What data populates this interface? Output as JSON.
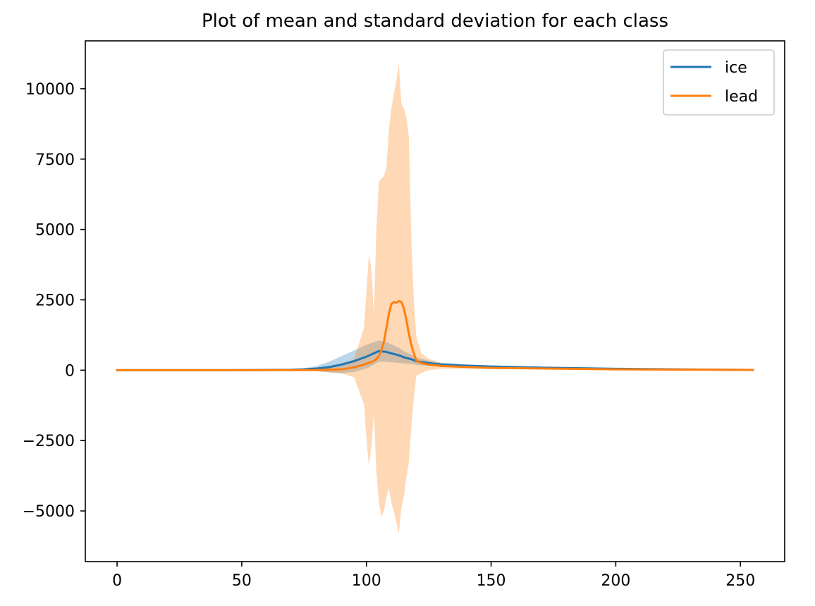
{
  "chart_data": {
    "type": "line",
    "title": "Plot of mean and standard deviation for each class",
    "xlabel": "",
    "ylabel": "",
    "xlim": [
      -12.75,
      267.75
    ],
    "ylim": [
      -6800,
      11700
    ],
    "xticks": [
      0,
      50,
      100,
      150,
      200,
      250
    ],
    "xtick_labels": [
      "0",
      "50",
      "100",
      "150",
      "200",
      "250"
    ],
    "yticks": [
      -5000,
      -2500,
      0,
      2500,
      5000,
      7500,
      10000
    ],
    "ytick_labels": [
      "−5000",
      "−2500",
      "0",
      "2500",
      "5000",
      "7500",
      "10000"
    ],
    "grid": false,
    "legend_position": "top-right",
    "series": [
      {
        "name": "ice",
        "color": "#1f77b4",
        "band_color": "#1f77b4",
        "band_opacity": 0.3,
        "x": [
          0,
          50,
          70,
          75,
          80,
          85,
          90,
          95,
          100,
          103,
          105,
          108,
          110,
          113,
          115,
          118,
          120,
          125,
          130,
          140,
          150,
          170,
          200,
          230,
          255
        ],
        "mean": [
          0,
          2,
          15,
          30,
          60,
          110,
          200,
          320,
          480,
          600,
          680,
          650,
          600,
          530,
          460,
          390,
          320,
          250,
          200,
          160,
          130,
          90,
          50,
          25,
          10
        ],
        "upper": [
          0,
          5,
          30,
          70,
          150,
          300,
          500,
          700,
          900,
          1000,
          1050,
          1000,
          920,
          800,
          680,
          550,
          450,
          340,
          270,
          210,
          170,
          120,
          70,
          35,
          15
        ],
        "lower": [
          0,
          -1,
          0,
          -10,
          -30,
          -80,
          -100,
          -60,
          60,
          200,
          300,
          300,
          280,
          260,
          240,
          220,
          190,
          160,
          130,
          110,
          90,
          60,
          30,
          15,
          5
        ]
      },
      {
        "name": "lead",
        "color": "#ff7f0e",
        "band_color": "#ff7f0e",
        "band_opacity": 0.3,
        "x": [
          0,
          50,
          80,
          90,
          95,
          99,
          100,
          101,
          102,
          103,
          104,
          105,
          106,
          107,
          108,
          109,
          110,
          111,
          112,
          113,
          114,
          115,
          116,
          117,
          118,
          119,
          120,
          122,
          125,
          130,
          150,
          200,
          255
        ],
        "mean": [
          0,
          0,
          5,
          30,
          100,
          200,
          230,
          260,
          290,
          330,
          400,
          500,
          700,
          1000,
          1500,
          2000,
          2350,
          2420,
          2400,
          2450,
          2430,
          2200,
          1800,
          1300,
          900,
          600,
          350,
          250,
          200,
          150,
          80,
          30,
          10
        ],
        "upper": [
          0,
          5,
          50,
          150,
          400,
          1500,
          2800,
          4100,
          3600,
          2000,
          5000,
          6700,
          6800,
          6900,
          7200,
          8500,
          9300,
          9800,
          10300,
          10900,
          9500,
          9300,
          9000,
          8300,
          4700,
          2500,
          1200,
          600,
          400,
          250,
          120,
          40,
          15
        ],
        "lower": [
          0,
          -5,
          -40,
          -120,
          -250,
          -1200,
          -2400,
          -3400,
          -2700,
          -1500,
          -3600,
          -4700,
          -5200,
          -5000,
          -4500,
          -4200,
          -4700,
          -5000,
          -5400,
          -5800,
          -4900,
          -4500,
          -3800,
          -3300,
          -2000,
          -1000,
          -200,
          -100,
          0,
          50,
          40,
          20,
          5
        ]
      }
    ]
  }
}
